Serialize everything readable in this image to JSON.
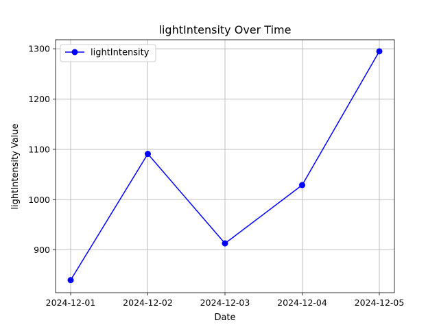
{
  "chart_data": {
    "type": "line",
    "title": "lightIntensity Over Time",
    "xlabel": "Date",
    "ylabel": "lightIntensity Value",
    "x": [
      "2024-12-01",
      "2024-12-02",
      "2024-12-03",
      "2024-12-04",
      "2024-12-05"
    ],
    "series": [
      {
        "name": "lightIntensity",
        "values": [
          840,
          1091,
          913,
          1029,
          1295
        ],
        "color": "#0000ff",
        "marker": "circle"
      }
    ],
    "ylim": [
      815,
      1318
    ],
    "yticks": [
      900,
      1000,
      1100,
      1200,
      1300
    ],
    "grid": true,
    "legend_position": "top-left"
  }
}
